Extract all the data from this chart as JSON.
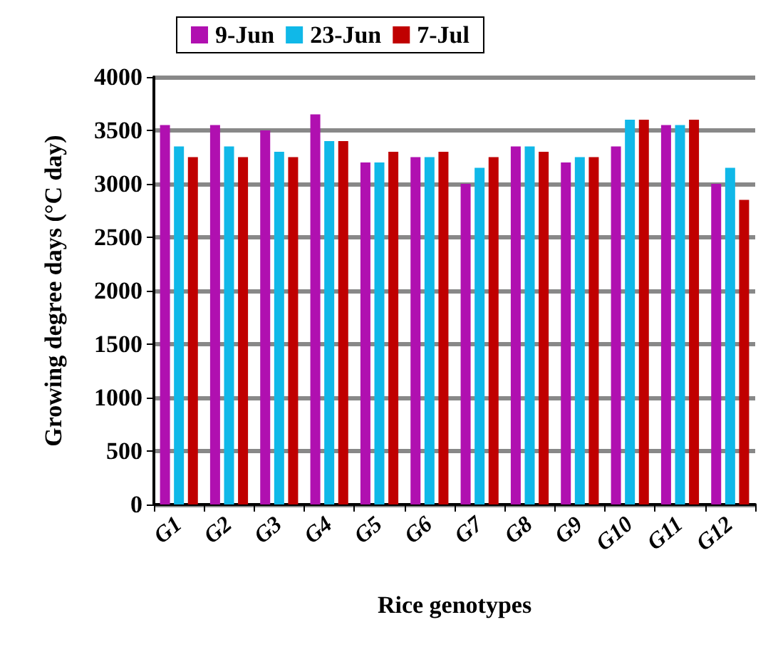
{
  "chart_data": {
    "type": "bar",
    "xlabel": "Rice genotypes",
    "ylabel": "Growing degree days (°C day)",
    "categories": [
      "G1",
      "G2",
      "G3",
      "G4",
      "G5",
      "G6",
      "G7",
      "G8",
      "G9",
      "G10",
      "G11",
      "G12"
    ],
    "series": [
      {
        "name": "9-Jun",
        "color": "#b010b0",
        "values": [
          3550,
          3550,
          3500,
          3650,
          3200,
          3250,
          3000,
          3350,
          3200,
          3350,
          3550,
          3000
        ]
      },
      {
        "name": "23-Jun",
        "color": "#10b8e8",
        "values": [
          3350,
          3350,
          3300,
          3400,
          3200,
          3250,
          3150,
          3350,
          3250,
          3600,
          3550,
          3150
        ]
      },
      {
        "name": "7-Jul",
        "color": "#c00000",
        "values": [
          3250,
          3250,
          3250,
          3400,
          3300,
          3300,
          3250,
          3300,
          3250,
          3600,
          3600,
          2850
        ]
      }
    ],
    "ylim": [
      0,
      4000
    ],
    "yticks": [
      0,
      500,
      1000,
      1500,
      2000,
      2500,
      3000,
      3500,
      4000
    ],
    "grid": "y",
    "legend": "top left"
  }
}
